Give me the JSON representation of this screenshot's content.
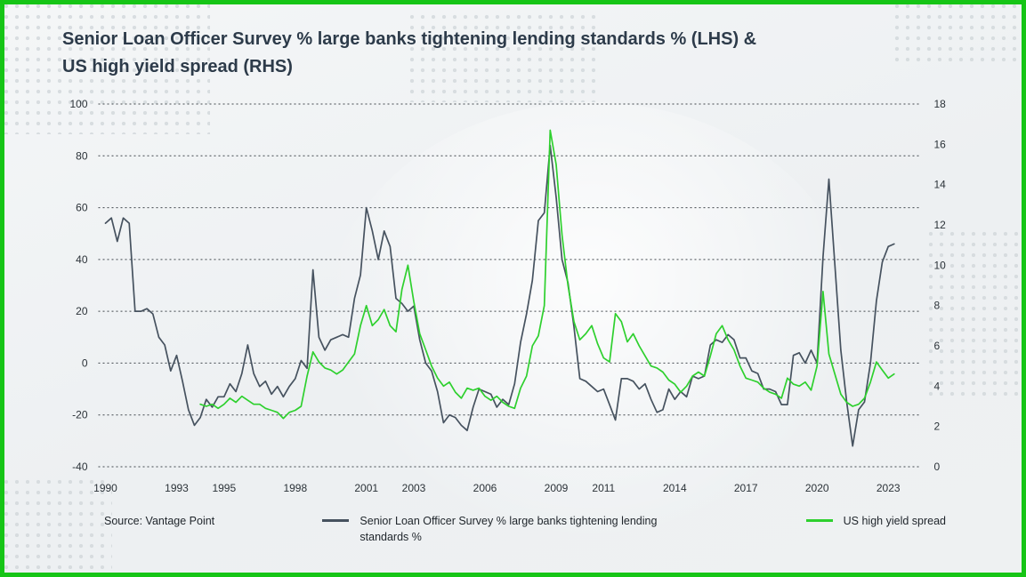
{
  "title": {
    "line1": "Senior Loan Officer Survey % large banks tightening lending standards % (LHS) &",
    "line2": "US high yield spread (RHS)"
  },
  "source": {
    "text": "Source: Vantage Point"
  },
  "colors": {
    "frame_border": "#16c516",
    "slos_line": "#46525f",
    "hy_line": "#2ed02e",
    "gridline": "#41474d",
    "title_text": "#2d3b4a"
  },
  "chart_data": {
    "type": "line",
    "title": "Senior Loan Officer Survey % large banks tightening lending standards % (LHS) & US high yield spread (RHS)",
    "grid": "horizontal-dotted",
    "legend_position": "bottom",
    "left_axis": {
      "ticks": [
        100,
        80,
        60,
        40,
        20,
        0,
        -20,
        -40
      ],
      "range": [
        -40,
        100
      ]
    },
    "right_axis": {
      "ticks": [
        18,
        16,
        14,
        12,
        10,
        8,
        6,
        4,
        2,
        0
      ],
      "range": [
        0,
        18
      ]
    },
    "x_axis": {
      "tick_labels": [
        1990,
        1993,
        1995,
        1998,
        2001,
        2003,
        2006,
        2009,
        2011,
        2014,
        2017,
        2020,
        2023
      ],
      "range": [
        1989.7,
        2024.4
      ]
    },
    "series": [
      {
        "name": "Senior Loan Officer Survey % large banks tightening lending standards %",
        "axis": "left",
        "color": "#46525f",
        "x_start": 1990.0,
        "x_step": 0.25,
        "values": [
          54,
          56,
          47,
          56,
          54,
          20,
          20,
          21,
          19,
          10,
          7,
          -3,
          3,
          -7,
          -18,
          -24,
          -21,
          -14,
          -17,
          -13,
          -13,
          -8,
          -11,
          -4,
          7,
          -4,
          -9,
          -7,
          -12,
          -9,
          -13,
          -9,
          -6,
          1,
          -2,
          36,
          10,
          5,
          9,
          10,
          11,
          10,
          25,
          34,
          60,
          51,
          40,
          51,
          45,
          25,
          23,
          20,
          22,
          9,
          0,
          -3,
          -11,
          -23,
          -20,
          -21,
          -24,
          -26,
          -17,
          -10,
          -11,
          -12,
          -17,
          -14,
          -16,
          -8,
          8,
          19,
          32,
          55,
          58,
          84,
          64,
          40,
          31,
          14,
          -6,
          -7,
          -9,
          -11,
          -10,
          -16,
          -22,
          -6,
          -6,
          -7,
          -10,
          -8,
          -14,
          -19,
          -18,
          -10,
          -14,
          -11,
          -13,
          -5,
          -6,
          -5,
          7,
          9,
          8,
          11,
          9,
          2,
          2,
          -3,
          -4,
          -10,
          -10,
          -11,
          -16,
          -16,
          3,
          4,
          0,
          5,
          0,
          41,
          71,
          38,
          5,
          -15,
          -32,
          -18,
          -15,
          0,
          24,
          39,
          45,
          46
        ]
      },
      {
        "name": "US high yield spread",
        "axis": "right",
        "color": "#2ed02e",
        "x_start": 1994.0,
        "x_step": 0.25,
        "values": [
          3.1,
          3.0,
          3.1,
          2.9,
          3.1,
          3.4,
          3.2,
          3.5,
          3.3,
          3.1,
          3.1,
          2.9,
          2.8,
          2.7,
          2.4,
          2.7,
          2.8,
          3.0,
          4.5,
          5.7,
          5.2,
          4.9,
          4.8,
          4.6,
          4.8,
          5.2,
          5.6,
          7.0,
          8.0,
          7.0,
          7.3,
          7.8,
          7.0,
          6.7,
          8.8,
          10.0,
          8.2,
          6.6,
          5.8,
          5.0,
          4.4,
          4.0,
          4.2,
          3.7,
          3.4,
          3.9,
          3.8,
          3.9,
          3.5,
          3.3,
          3.5,
          3.2,
          3.0,
          2.9,
          3.9,
          4.5,
          6.0,
          6.5,
          8.0,
          16.7,
          15.0,
          11.5,
          9.0,
          7.2,
          6.3,
          6.6,
          7.0,
          6.1,
          5.4,
          5.2,
          7.6,
          7.2,
          6.2,
          6.6,
          6.0,
          5.5,
          5.0,
          4.9,
          4.7,
          4.3,
          4.1,
          3.7,
          4.0,
          4.5,
          4.7,
          4.5,
          5.5,
          6.6,
          7.0,
          6.3,
          5.8,
          5.0,
          4.4,
          4.3,
          4.2,
          3.9,
          3.7,
          3.6,
          3.4,
          4.4,
          4.1,
          4.0,
          4.2,
          3.8,
          5.0,
          8.7,
          5.6,
          4.6,
          3.6,
          3.2,
          3.0,
          3.1,
          3.4,
          4.2,
          5.2,
          4.8,
          4.4,
          4.6
        ]
      }
    ]
  }
}
